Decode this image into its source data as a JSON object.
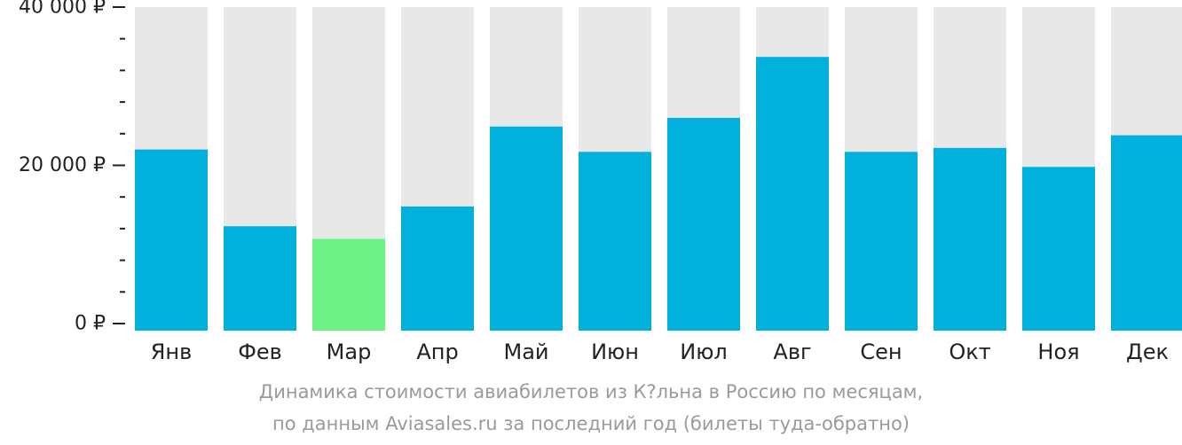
{
  "chart_data": {
    "type": "bar",
    "categories": [
      "Янв",
      "Фев",
      "Мар",
      "Апр",
      "Май",
      "Июн",
      "Июл",
      "Авг",
      "Сен",
      "Окт",
      "Ноя",
      "Дек"
    ],
    "values": [
      22000,
      12300,
      10700,
      14800,
      24900,
      21700,
      26000,
      33700,
      21700,
      22200,
      19800,
      23800
    ],
    "highlight_index": 2,
    "ylim": [
      0,
      40000
    ],
    "yticks": [
      0,
      20000,
      40000
    ],
    "ytick_labels": [
      "0 ₽",
      "20 000 ₽",
      "40 000 ₽"
    ],
    "colors": {
      "bar": "#02b0dc",
      "highlight": "#6cf285",
      "track": "#e8e8e8",
      "text": "#222222",
      "caption": "#9a9a9a"
    }
  },
  "caption": {
    "line1": "Динамика стоимости авиабилетов из К?льна в Россию по месяцам,",
    "line2": "по данным Aviasales.ru за последний год (билеты туда-обратно)"
  }
}
